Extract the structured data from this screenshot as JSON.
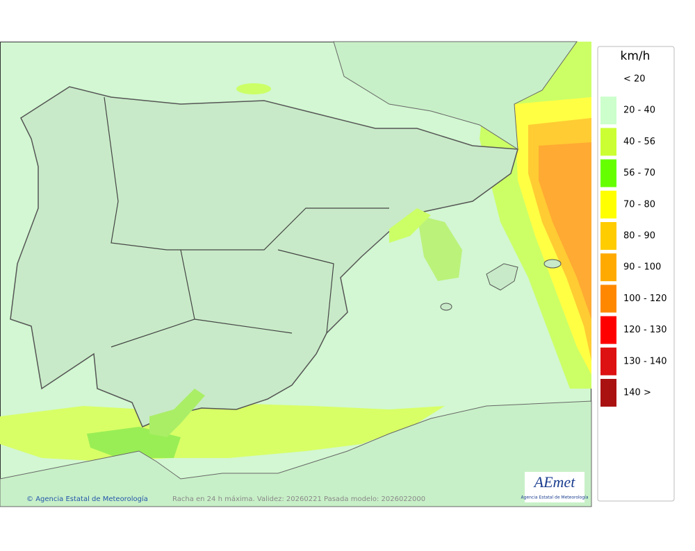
{
  "map": {
    "footer_credit": "Agencia Estatal de Meteorología",
    "footer_caption": "Racha en 24 h máxima. Validez: 20260221 Pasada modelo: 2026022000",
    "logo": {
      "name": "AEmet",
      "subtitle": "Agencia Estatal de Meteorología"
    }
  },
  "legend": {
    "unit": "km/h",
    "items": [
      {
        "label": "< 20",
        "color": null
      },
      {
        "label": "20 - 40",
        "color": "#ccffcc"
      },
      {
        "label": "40 - 56",
        "color": "#ccff33"
      },
      {
        "label": "56 - 70",
        "color": "#66ff00"
      },
      {
        "label": "70 - 80",
        "color": "#ffff00"
      },
      {
        "label": "80 - 90",
        "color": "#ffcc00"
      },
      {
        "label": "90 - 100",
        "color": "#ffaa00"
      },
      {
        "label": "100 - 120",
        "color": "#ff8800"
      },
      {
        "label": "120 - 130",
        "color": "#ff0000"
      },
      {
        "label": "130 - 140",
        "color": "#dd1111"
      },
      {
        "label": "140 >",
        "color": "#aa1111"
      }
    ]
  }
}
